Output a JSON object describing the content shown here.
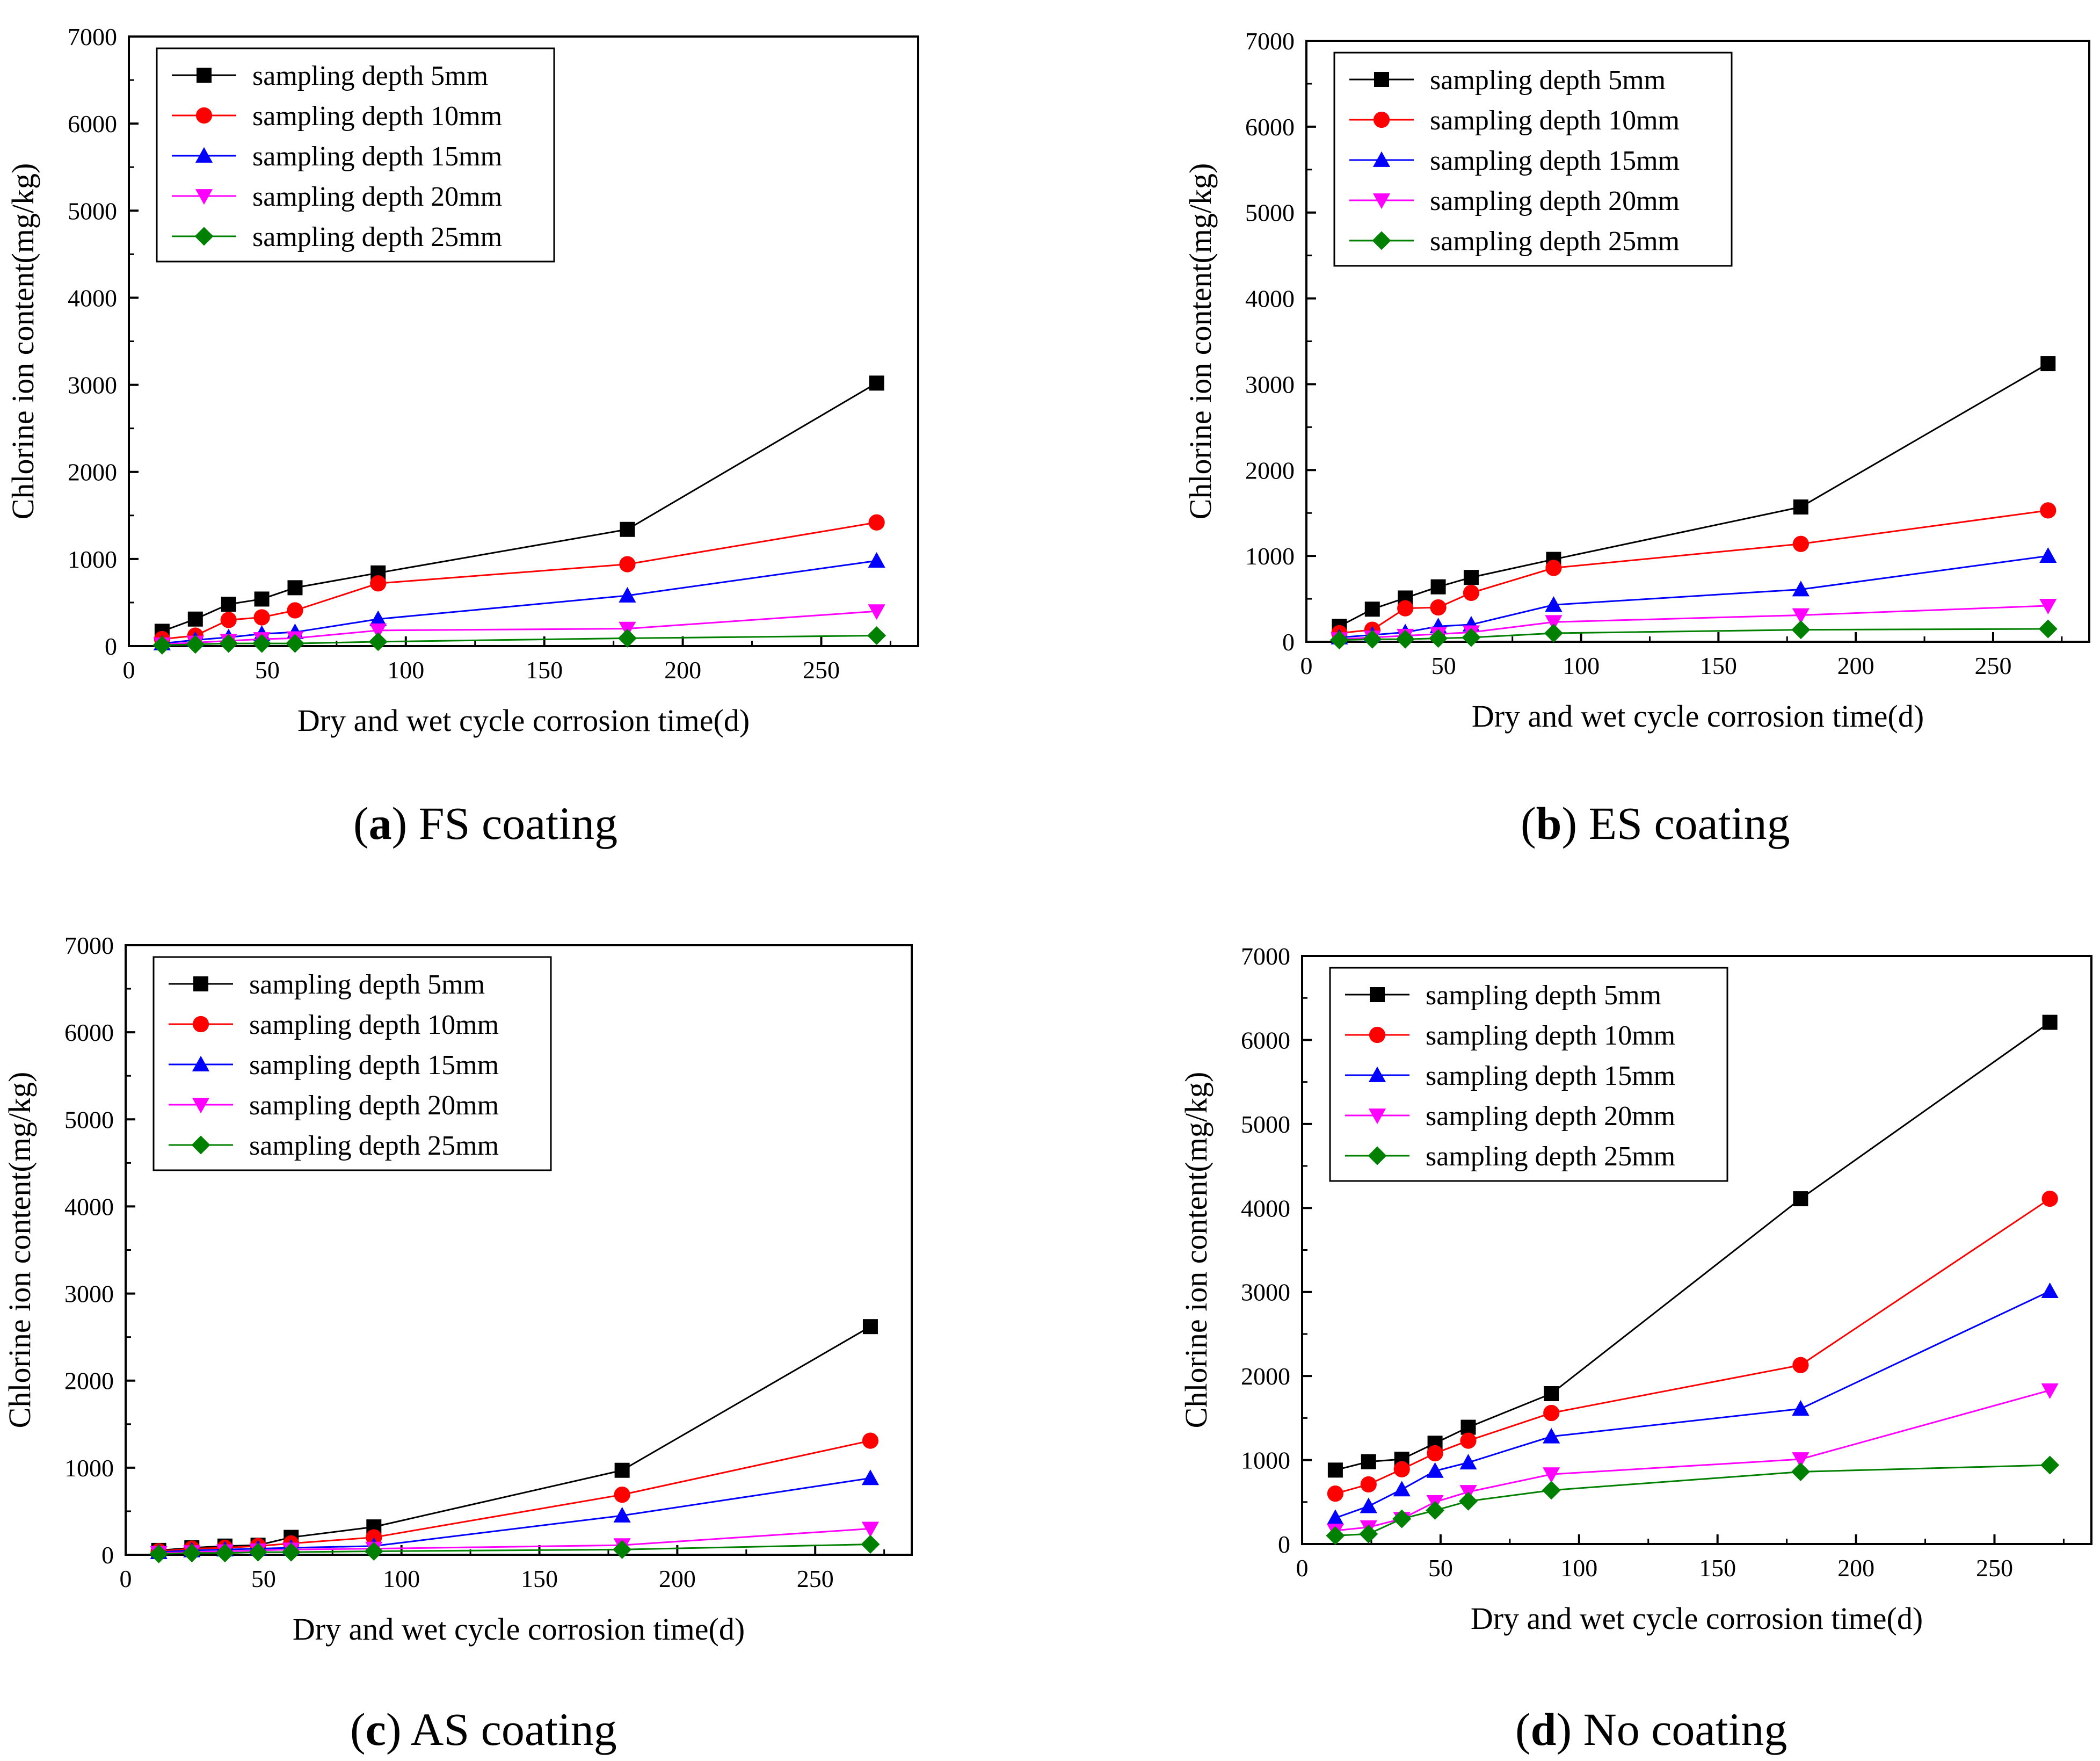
{
  "figure": {
    "colors": {
      "black": "#000000",
      "red": "#ff0000",
      "blue": "#0000ff",
      "magenta": "#ff00ff",
      "green": "#008000"
    }
  },
  "captions": [
    {
      "letter": "a",
      "open": "(",
      "close": ")",
      "text": " FS coating"
    },
    {
      "letter": "b",
      "open": "(",
      "close": ")",
      "text": " ES coating"
    },
    {
      "letter": "c",
      "open": "(",
      "close": ")",
      "text": " AS coating"
    },
    {
      "letter": "d",
      "open": "(",
      "close": ")",
      "text": " No coating"
    }
  ],
  "chart_data": [
    {
      "type": "line",
      "panel": "a",
      "caption": "(a) FS coating",
      "xlabel": "Dry and wet cycle corrosion time(d)",
      "ylabel": "Chlorine ion content(mg/kg)",
      "xlim": [
        0,
        285
      ],
      "ylim": [
        0,
        7000
      ],
      "xticks": [
        0,
        50,
        100,
        150,
        200,
        250
      ],
      "yticks": [
        0,
        1000,
        2000,
        3000,
        4000,
        5000,
        6000,
        7000
      ],
      "legend_position": "top-left",
      "x": [
        12,
        24,
        36,
        48,
        60,
        90,
        180,
        270
      ],
      "series": [
        {
          "name": "sampling depth 5mm",
          "color": "#000000",
          "marker": "square",
          "values": [
            170,
            310,
            480,
            540,
            670,
            840,
            1340,
            3020
          ]
        },
        {
          "name": "sampling depth 10mm",
          "color": "#ff0000",
          "marker": "circle",
          "values": [
            80,
            120,
            300,
            330,
            410,
            720,
            940,
            1420
          ]
        },
        {
          "name": "sampling depth 15mm",
          "color": "#0000ff",
          "marker": "triangle-up",
          "values": [
            30,
            70,
            100,
            140,
            160,
            310,
            580,
            980
          ]
        },
        {
          "name": "sampling depth 20mm",
          "color": "#ff00ff",
          "marker": "triangle-down",
          "values": [
            20,
            40,
            60,
            80,
            90,
            180,
            200,
            400
          ]
        },
        {
          "name": "sampling depth 25mm",
          "color": "#008000",
          "marker": "diamond",
          "values": [
            10,
            20,
            30,
            30,
            30,
            50,
            90,
            120
          ]
        }
      ]
    },
    {
      "type": "line",
      "panel": "b",
      "caption": "(b) ES coating",
      "xlabel": "Dry and wet cycle corrosion time(d)",
      "ylabel": "Chlorine ion content(mg/kg)",
      "xlim": [
        0,
        285
      ],
      "ylim": [
        0,
        7000
      ],
      "xticks": [
        0,
        50,
        100,
        150,
        200,
        250
      ],
      "yticks": [
        0,
        1000,
        2000,
        3000,
        4000,
        5000,
        6000,
        7000
      ],
      "legend_position": "top-left",
      "x": [
        12,
        24,
        36,
        48,
        60,
        90,
        180,
        270
      ],
      "series": [
        {
          "name": "sampling depth 5mm",
          "color": "#000000",
          "marker": "square",
          "values": [
            180,
            380,
            510,
            640,
            750,
            960,
            1570,
            3240
          ]
        },
        {
          "name": "sampling depth 10mm",
          "color": "#ff0000",
          "marker": "circle",
          "values": [
            100,
            140,
            390,
            400,
            570,
            860,
            1140,
            1530
          ]
        },
        {
          "name": "sampling depth 15mm",
          "color": "#0000ff",
          "marker": "triangle-up",
          "values": [
            50,
            80,
            110,
            180,
            200,
            430,
            610,
            1000
          ]
        },
        {
          "name": "sampling depth 20mm",
          "color": "#ff00ff",
          "marker": "triangle-down",
          "values": [
            30,
            50,
            70,
            90,
            110,
            230,
            310,
            420
          ]
        },
        {
          "name": "sampling depth 25mm",
          "color": "#008000",
          "marker": "diamond",
          "values": [
            20,
            30,
            30,
            40,
            50,
            100,
            140,
            150
          ]
        }
      ]
    },
    {
      "type": "line",
      "panel": "c",
      "caption": "(c) AS coating",
      "xlabel": "Dry and wet cycle corrosion time(d)",
      "ylabel": "Chlorine ion content(mg/kg)",
      "xlim": [
        0,
        285
      ],
      "ylim": [
        0,
        7000
      ],
      "xticks": [
        0,
        50,
        100,
        150,
        200,
        250
      ],
      "yticks": [
        0,
        1000,
        2000,
        3000,
        4000,
        5000,
        6000,
        7000
      ],
      "legend_position": "top-left",
      "x": [
        12,
        24,
        36,
        48,
        60,
        90,
        180,
        270
      ],
      "series": [
        {
          "name": "sampling depth 5mm",
          "color": "#000000",
          "marker": "square",
          "values": [
            50,
            80,
            100,
            110,
            200,
            320,
            970,
            2620
          ]
        },
        {
          "name": "sampling depth 10mm",
          "color": "#ff0000",
          "marker": "circle",
          "values": [
            40,
            70,
            80,
            100,
            130,
            200,
            690,
            1310
          ]
        },
        {
          "name": "sampling depth 15mm",
          "color": "#0000ff",
          "marker": "triangle-up",
          "values": [
            30,
            50,
            60,
            70,
            80,
            100,
            450,
            880
          ]
        },
        {
          "name": "sampling depth 20mm",
          "color": "#ff00ff",
          "marker": "triangle-down",
          "values": [
            20,
            30,
            40,
            50,
            60,
            70,
            110,
            300
          ]
        },
        {
          "name": "sampling depth 25mm",
          "color": "#008000",
          "marker": "diamond",
          "values": [
            10,
            20,
            20,
            30,
            30,
            40,
            60,
            120
          ]
        }
      ]
    },
    {
      "type": "line",
      "panel": "d",
      "caption": "(d) No coating",
      "xlabel": "Dry and wet cycle corrosion time(d)",
      "ylabel": "Chlorine ion content(mg/kg)",
      "xlim": [
        0,
        285
      ],
      "ylim": [
        0,
        7000
      ],
      "xticks": [
        0,
        50,
        100,
        150,
        200,
        250
      ],
      "yticks": [
        0,
        1000,
        2000,
        3000,
        4000,
        5000,
        6000,
        7000
      ],
      "legend_position": "top-left",
      "x": [
        12,
        24,
        36,
        48,
        60,
        90,
        180,
        270
      ],
      "series": [
        {
          "name": "sampling depth 5mm",
          "color": "#000000",
          "marker": "square",
          "values": [
            880,
            980,
            1010,
            1200,
            1390,
            1790,
            4110,
            6210
          ]
        },
        {
          "name": "sampling depth 10mm",
          "color": "#ff0000",
          "marker": "circle",
          "values": [
            600,
            710,
            890,
            1080,
            1230,
            1560,
            2130,
            4110
          ]
        },
        {
          "name": "sampling depth 15mm",
          "color": "#0000ff",
          "marker": "triangle-up",
          "values": [
            310,
            450,
            650,
            870,
            970,
            1280,
            1610,
            3010
          ]
        },
        {
          "name": "sampling depth 20mm",
          "color": "#ff00ff",
          "marker": "triangle-down",
          "values": [
            160,
            200,
            300,
            500,
            620,
            830,
            1010,
            1830
          ]
        },
        {
          "name": "sampling depth 25mm",
          "color": "#008000",
          "marker": "diamond",
          "values": [
            100,
            120,
            300,
            400,
            510,
            640,
            860,
            940
          ]
        }
      ]
    }
  ]
}
